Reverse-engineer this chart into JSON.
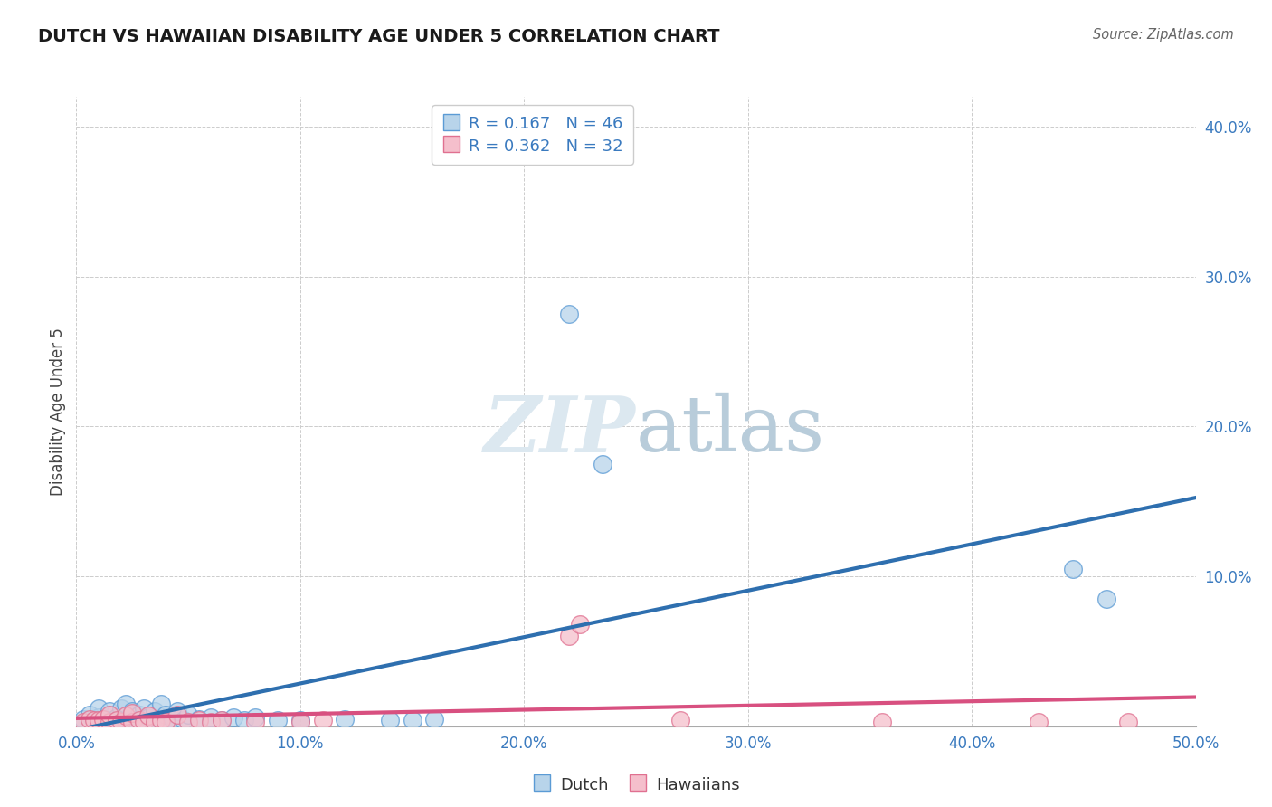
{
  "title": "DUTCH VS HAWAIIAN DISABILITY AGE UNDER 5 CORRELATION CHART",
  "source": "Source: ZipAtlas.com",
  "ylabel": "Disability Age Under 5",
  "xlim": [
    0.0,
    0.5
  ],
  "ylim": [
    0.0,
    0.42
  ],
  "xticks": [
    0.0,
    0.1,
    0.2,
    0.3,
    0.4,
    0.5
  ],
  "yticks": [
    0.0,
    0.1,
    0.2,
    0.3,
    0.4
  ],
  "ytick_labels": [
    "",
    "10.0%",
    "20.0%",
    "30.0%",
    "40.0%"
  ],
  "xtick_labels": [
    "0.0%",
    "10.0%",
    "20.0%",
    "30.0%",
    "40.0%",
    "50.0%"
  ],
  "dutch_fill": "#b8d4ea",
  "dutch_edge": "#5b9bd5",
  "hawaiian_fill": "#f5bfcc",
  "hawaiian_edge": "#e07090",
  "dutch_line_color": "#2e6faf",
  "hawaiian_line_color": "#d85080",
  "legend_color": "#3a7abf",
  "watermark_color": "#dce8f0",
  "dutch_r": 0.167,
  "dutch_n": 46,
  "hawaiian_r": 0.362,
  "hawaiian_n": 32,
  "dutch_x": [
    0.003,
    0.006,
    0.008,
    0.01,
    0.01,
    0.012,
    0.015,
    0.015,
    0.018,
    0.02,
    0.02,
    0.022,
    0.022,
    0.025,
    0.025,
    0.028,
    0.028,
    0.03,
    0.03,
    0.032,
    0.035,
    0.035,
    0.037,
    0.038,
    0.04,
    0.04,
    0.043,
    0.045,
    0.048,
    0.05,
    0.055,
    0.06,
    0.065,
    0.07,
    0.075,
    0.08,
    0.09,
    0.1,
    0.12,
    0.14,
    0.15,
    0.16,
    0.22,
    0.235,
    0.445,
    0.46
  ],
  "dutch_y": [
    0.005,
    0.008,
    0.004,
    0.006,
    0.012,
    0.005,
    0.004,
    0.01,
    0.006,
    0.004,
    0.012,
    0.005,
    0.015,
    0.004,
    0.01,
    0.005,
    0.008,
    0.004,
    0.012,
    0.006,
    0.004,
    0.01,
    0.005,
    0.015,
    0.004,
    0.008,
    0.005,
    0.01,
    0.004,
    0.008,
    0.005,
    0.006,
    0.004,
    0.006,
    0.004,
    0.006,
    0.004,
    0.004,
    0.005,
    0.004,
    0.004,
    0.005,
    0.275,
    0.175,
    0.105,
    0.085
  ],
  "hawaiian_x": [
    0.003,
    0.006,
    0.008,
    0.01,
    0.012,
    0.015,
    0.015,
    0.018,
    0.02,
    0.022,
    0.025,
    0.025,
    0.028,
    0.03,
    0.032,
    0.035,
    0.038,
    0.04,
    0.045,
    0.05,
    0.055,
    0.06,
    0.065,
    0.08,
    0.1,
    0.11,
    0.22,
    0.225,
    0.27,
    0.36,
    0.43,
    0.47
  ],
  "hawaiian_y": [
    0.003,
    0.005,
    0.004,
    0.004,
    0.005,
    0.003,
    0.008,
    0.004,
    0.003,
    0.007,
    0.003,
    0.009,
    0.004,
    0.003,
    0.007,
    0.003,
    0.004,
    0.003,
    0.008,
    0.003,
    0.004,
    0.003,
    0.004,
    0.003,
    0.003,
    0.004,
    0.06,
    0.068,
    0.004,
    0.003,
    0.003,
    0.003
  ]
}
